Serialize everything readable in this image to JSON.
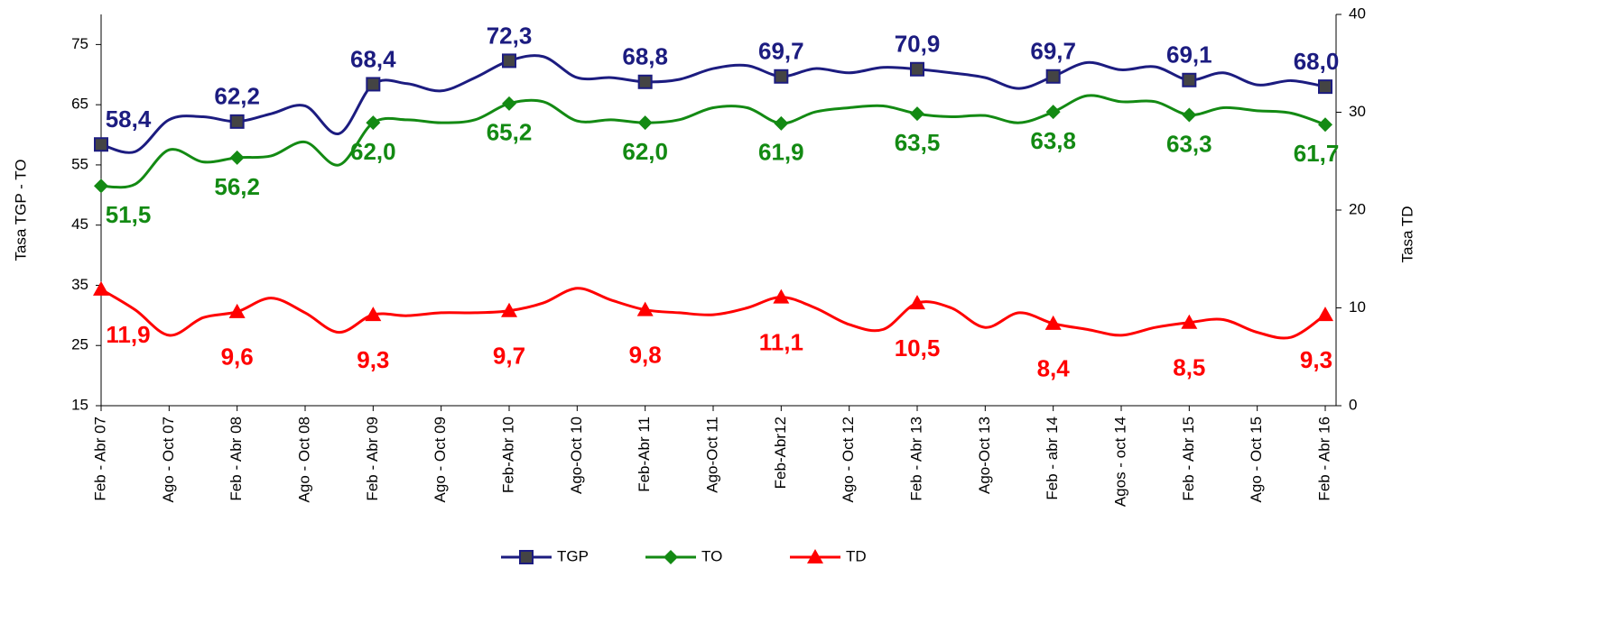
{
  "chart_data": {
    "type": "line",
    "y_label": "Tasa TGP - TO",
    "y2_label": "Tasa TD",
    "categories": [
      "Feb - Abr 07",
      null,
      "Ago - Oct 07",
      null,
      "Feb - Abr 08",
      null,
      "Ago - Oct 08",
      null,
      "Feb - Abr 09",
      null,
      "Ago - Oct 09",
      null,
      "Feb-Abr 10",
      null,
      "Ago-Oct 10",
      null,
      "Feb-Abr 11",
      null,
      "Ago-Oct 11",
      null,
      "Feb-Abr12",
      null,
      "Ago - Oct 12",
      null,
      "Feb - Abr 13",
      null,
      "Ago-Oct 13",
      null,
      "Feb - abr 14",
      null,
      "Agos - oct 14",
      null,
      "Feb - Abr 15",
      null,
      "Ago - Oct 15",
      null,
      "Feb - Abr 16"
    ],
    "series": [
      {
        "name": "TGP",
        "color": "#1c1c80",
        "marker": "square",
        "label_position": "above",
        "values": [
          58.4,
          57.2,
          62.5,
          63,
          62.2,
          63.5,
          64.8,
          60.2,
          68.4,
          68.5,
          67.3,
          69.5,
          72.3,
          73,
          69.5,
          69.5,
          68.8,
          69.2,
          71,
          71.5,
          69.7,
          71,
          70.3,
          71.2,
          70.9,
          70.3,
          69.5,
          67.7,
          69.7,
          72,
          70.8,
          71.3,
          69.1,
          70.3,
          68.3,
          69,
          68.0
        ],
        "value_labels": [
          "58,4",
          null,
          null,
          null,
          "62,2",
          null,
          null,
          null,
          "68,4",
          null,
          null,
          null,
          "72,3",
          null,
          null,
          null,
          "68,8",
          null,
          null,
          null,
          "69,7",
          null,
          null,
          null,
          "70,9",
          null,
          null,
          null,
          "69,7",
          null,
          null,
          null,
          "69,1",
          null,
          null,
          null,
          "68,0"
        ]
      },
      {
        "name": "TO",
        "color": "#138a13",
        "marker": "diamond",
        "label_position": "below",
        "values": [
          51.5,
          51.8,
          57.5,
          55.5,
          56.2,
          56.5,
          58.8,
          55,
          62.0,
          62.5,
          62,
          62.5,
          65.2,
          65.5,
          62.3,
          62.5,
          62.0,
          62.5,
          64.5,
          64.5,
          61.9,
          63.8,
          64.5,
          64.8,
          63.5,
          63,
          63.2,
          62,
          63.8,
          66.5,
          65.5,
          65.5,
          63.3,
          64.5,
          64,
          63.6,
          61.7
        ],
        "value_labels": [
          "51,5",
          null,
          null,
          null,
          "56,2",
          null,
          null,
          null,
          "62,0",
          null,
          null,
          null,
          "65,2",
          null,
          null,
          null,
          "62,0",
          null,
          null,
          null,
          "61,9",
          null,
          null,
          null,
          "63,5",
          null,
          null,
          null,
          "63,8",
          null,
          null,
          null,
          "63,3",
          null,
          null,
          null,
          "61,7"
        ]
      },
      {
        "name": "TD",
        "color": "#ff0000",
        "marker": "triangle",
        "label_position": "below",
        "axis": "y2",
        "values": [
          11.9,
          9.8,
          7.2,
          9,
          9.6,
          11,
          9.5,
          7.5,
          9.3,
          9.2,
          9.5,
          9.5,
          9.7,
          10.5,
          12,
          10.8,
          9.8,
          9.5,
          9.3,
          10,
          11.1,
          10,
          8.3,
          7.8,
          10.5,
          10,
          8,
          9.5,
          8.4,
          7.8,
          7.2,
          8,
          8.5,
          8.8,
          7.5,
          7,
          9.3
        ],
        "value_labels": [
          "11,9",
          null,
          null,
          null,
          "9,6",
          null,
          null,
          null,
          "9,3",
          null,
          null,
          null,
          "9,7",
          null,
          null,
          null,
          "9,8",
          null,
          null,
          null,
          "11,1",
          null,
          null,
          null,
          "10,5",
          null,
          null,
          null,
          "8,4",
          null,
          null,
          null,
          "8,5",
          null,
          null,
          null,
          "9,3"
        ]
      }
    ],
    "ylim": [
      15,
      80
    ],
    "yticks": [
      15,
      25,
      35,
      45,
      55,
      65,
      75
    ],
    "y2lim": [
      0,
      40
    ],
    "y2ticks": [
      0,
      10,
      20,
      30,
      40
    ],
    "legend": "bottom"
  }
}
